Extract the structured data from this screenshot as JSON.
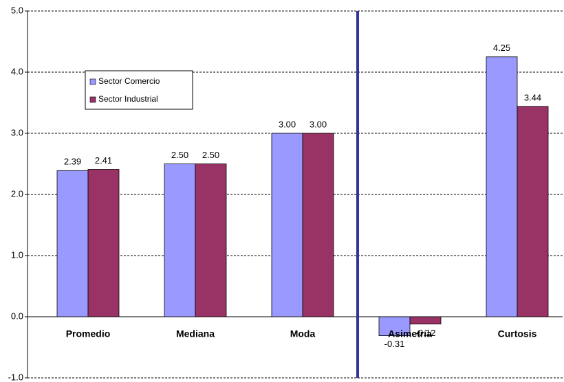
{
  "chart_data": {
    "type": "bar",
    "categories": [
      "Promedio",
      "Mediana",
      "Moda",
      "Asimetría",
      "Curtosis"
    ],
    "series": [
      {
        "name": "Sector Comercio",
        "color": "#9999ff",
        "values": [
          2.39,
          2.5,
          3.0,
          -0.31,
          4.25
        ],
        "value_labels": [
          "2.39",
          "2.50",
          "3.00",
          "-0.31",
          "4.25"
        ]
      },
      {
        "name": "Sector Industrial",
        "color": "#993366",
        "values": [
          2.41,
          2.5,
          3.0,
          -0.12,
          3.44
        ],
        "value_labels": [
          "2.41",
          "2.50",
          "3.00",
          "-0.12",
          "3.44"
        ]
      }
    ],
    "ylim": [
      -1,
      5
    ],
    "yticks": [
      {
        "value": -1,
        "label": "-1.0"
      },
      {
        "value": 0,
        "label": "0.0"
      },
      {
        "value": 1,
        "label": "1.0"
      },
      {
        "value": 2,
        "label": "2.0"
      },
      {
        "value": 3,
        "label": "3.0"
      },
      {
        "value": 4,
        "label": "4.0"
      },
      {
        "value": 5,
        "label": "5.0"
      }
    ],
    "grid": true,
    "legend": "upper left"
  }
}
